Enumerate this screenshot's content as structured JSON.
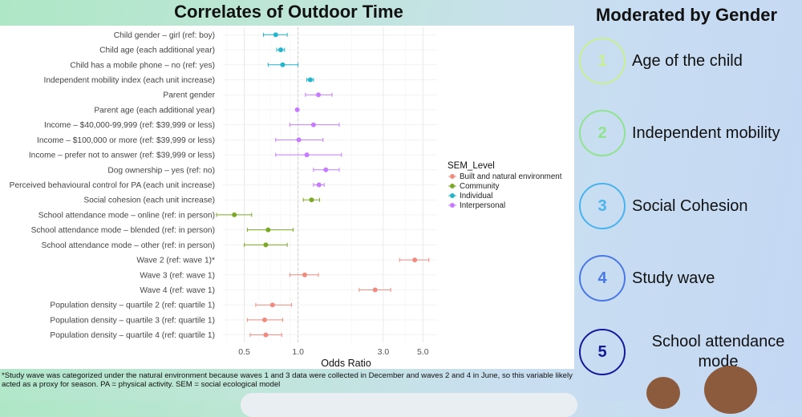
{
  "chart_data": {
    "type": "scatter",
    "subtype": "forest-plot",
    "title": "Correlates of Outdoor Time",
    "xlabel": "Odds Ratio",
    "x_scale": "log",
    "xlim": [
      0.38,
      6.0
    ],
    "x_ticks": [
      0.5,
      1.0,
      3.0,
      5.0
    ],
    "x_tick_labels": [
      "0.5",
      "1.0",
      "3.0",
      "5.0"
    ],
    "reference_line": 1.0,
    "legend_title": "SEM_Level",
    "legend_position": "right",
    "series": [
      {
        "name": "Built and natural environment",
        "color": "#f08b7f"
      },
      {
        "name": "Community",
        "color": "#7ba925"
      },
      {
        "name": "Individual",
        "color": "#22b5cc"
      },
      {
        "name": "Interpersonal",
        "color": "#c77cff"
      }
    ],
    "rows": [
      {
        "label": "Child gender – girl (ref: boy)",
        "level": "Individual",
        "or": 0.75,
        "lo": 0.64,
        "hi": 0.87
      },
      {
        "label": "Child age (each additional year)",
        "level": "Individual",
        "or": 0.8,
        "lo": 0.76,
        "hi": 0.84
      },
      {
        "label": "Child has a mobile phone – no (ref: yes)",
        "level": "Individual",
        "or": 0.82,
        "lo": 0.68,
        "hi": 1.0
      },
      {
        "label": "Independent mobility index (each unit increase)",
        "level": "Individual",
        "or": 1.17,
        "lo": 1.12,
        "hi": 1.22
      },
      {
        "label": "Parent gender",
        "level": "Interpersonal",
        "or": 1.3,
        "lo": 1.1,
        "hi": 1.55
      },
      {
        "label": "Parent age (each additional year)",
        "level": "Interpersonal",
        "or": 0.99,
        "lo": 0.98,
        "hi": 1.0
      },
      {
        "label": "Income – $40,000-99,999 (ref: $39,999 or less)",
        "level": "Interpersonal",
        "or": 1.22,
        "lo": 0.9,
        "hi": 1.7
      },
      {
        "label": "Income – $100,000 or more (ref: $39,999 or less)",
        "level": "Interpersonal",
        "or": 1.01,
        "lo": 0.75,
        "hi": 1.38
      },
      {
        "label": "Income – prefer not to answer (ref: $39,999 or less)",
        "level": "Interpersonal",
        "or": 1.12,
        "lo": 0.75,
        "hi": 1.75
      },
      {
        "label": "Dog ownership – yes (ref: no)",
        "level": "Interpersonal",
        "or": 1.43,
        "lo": 1.22,
        "hi": 1.7
      },
      {
        "label": "Perceived behavioural control for PA (each unit increase)",
        "level": "Interpersonal",
        "or": 1.31,
        "lo": 1.22,
        "hi": 1.4
      },
      {
        "label": "Social cohesion (each unit increase)",
        "level": "Community",
        "or": 1.19,
        "lo": 1.07,
        "hi": 1.32
      },
      {
        "label": "School attendance mode – online (ref: in person)",
        "level": "Community",
        "or": 0.44,
        "lo": 0.35,
        "hi": 0.55
      },
      {
        "label": "School attendance mode – blended (ref: in person)",
        "level": "Community",
        "or": 0.68,
        "lo": 0.52,
        "hi": 0.94
      },
      {
        "label": "School attendance mode – other (ref: in person)",
        "level": "Community",
        "or": 0.66,
        "lo": 0.5,
        "hi": 0.87
      },
      {
        "label": "Wave 2 (ref: wave 1)*",
        "level": "Built and natural environment",
        "or": 4.5,
        "lo": 3.7,
        "hi": 5.4
      },
      {
        "label": "Wave 3 (ref: wave 1)",
        "level": "Built and natural environment",
        "or": 1.09,
        "lo": 0.9,
        "hi": 1.3
      },
      {
        "label": "Wave 4 (ref: wave 1)",
        "level": "Built and natural environment",
        "or": 2.7,
        "lo": 2.2,
        "hi": 3.3
      },
      {
        "label": "Population density – quartile 2 (ref: quartile 1)",
        "level": "Built and natural environment",
        "or": 0.72,
        "lo": 0.58,
        "hi": 0.92
      },
      {
        "label": "Population density – quartile 3 (ref: quartile 1)",
        "level": "Built and natural environment",
        "or": 0.65,
        "lo": 0.52,
        "hi": 0.82
      },
      {
        "label": "Population density – quartile 4 (ref: quartile 1)",
        "level": "Built and natural environment",
        "or": 0.66,
        "lo": 0.54,
        "hi": 0.81
      }
    ]
  },
  "footnote": "*Study wave was categorized under the natural environment because waves 1 and 3 data were collected in December and waves 2 and 4 in June, so this variable likely acted as a proxy for season. PA = physical activity. SEM = social ecological model",
  "moderators": {
    "title": "Moderated by Gender",
    "items": [
      {
        "number": "1",
        "label": "Age of the child",
        "color": "#c8ef90"
      },
      {
        "number": "2",
        "label": "Independent mobility",
        "color": "#8fe38f"
      },
      {
        "number": "3",
        "label": "Social Cohesion",
        "color": "#49b3ec"
      },
      {
        "number": "4",
        "label": "Study wave",
        "color": "#4a78e4"
      },
      {
        "number": "5",
        "label": "School attendance mode",
        "color": "#131a98"
      }
    ]
  }
}
